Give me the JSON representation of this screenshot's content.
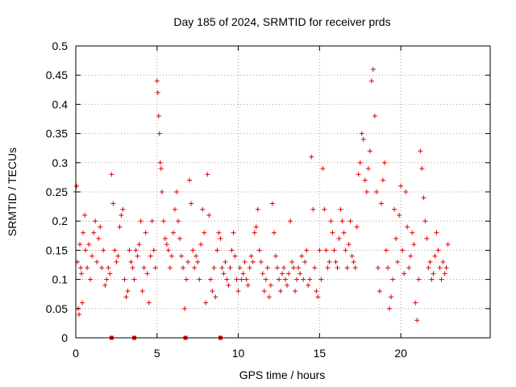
{
  "chart_data": {
    "type": "scatter",
    "title": "Day 185 of 2024, SRMTID for receiver prds",
    "xlabel": "GPS time / hours",
    "ylabel": "SRMTID / TECUs",
    "xlim": [
      0,
      25.5
    ],
    "ylim": [
      0,
      0.5
    ],
    "xticks": [
      0,
      5,
      10,
      15,
      20
    ],
    "xtick_labels": [
      "0",
      "5",
      "10",
      "15",
      "20"
    ],
    "yticks": [
      0,
      0.05,
      0.1,
      0.15,
      0.2,
      0.25,
      0.3,
      0.35,
      0.4,
      0.45,
      0.5
    ],
    "ytick_labels": [
      "0",
      "0.05",
      "0.1",
      "0.15",
      "0.2",
      "0.25",
      "0.3",
      "0.35",
      "0.4",
      "0.45",
      "0.5"
    ],
    "grid": true,
    "marker": "+",
    "color": "#e00000",
    "series": [
      {
        "name": "SRMTID",
        "x": [
          0.0,
          0.05,
          0.1,
          0.15,
          0.2,
          0.25,
          0.3,
          0.35,
          0.4,
          0.45,
          0.55,
          0.6,
          0.7,
          0.8,
          0.9,
          1.0,
          1.1,
          1.2,
          1.3,
          1.4,
          1.5,
          1.6,
          1.7,
          1.8,
          1.9,
          2.0,
          2.1,
          2.2,
          2.3,
          2.4,
          2.5,
          2.6,
          2.7,
          2.8,
          2.9,
          3.0,
          3.1,
          3.2,
          3.3,
          3.4,
          3.5,
          3.6,
          3.7,
          3.8,
          3.9,
          4.0,
          4.1,
          4.2,
          4.3,
          4.4,
          4.5,
          4.6,
          4.7,
          4.8,
          4.9,
          5.0,
          5.05,
          5.1,
          5.15,
          5.2,
          5.25,
          5.3,
          5.4,
          5.5,
          5.6,
          5.7,
          5.8,
          5.9,
          6.0,
          6.1,
          6.2,
          6.3,
          6.4,
          6.5,
          6.6,
          6.7,
          6.8,
          6.9,
          7.0,
          7.1,
          7.2,
          7.3,
          7.4,
          7.5,
          7.6,
          7.7,
          7.8,
          7.9,
          8.0,
          8.1,
          8.2,
          8.3,
          8.4,
          8.5,
          8.6,
          8.7,
          8.8,
          8.9,
          9.0,
          9.1,
          9.2,
          9.3,
          9.4,
          9.5,
          9.6,
          9.7,
          9.8,
          9.9,
          10.0,
          10.1,
          10.2,
          10.3,
          10.4,
          10.5,
          10.6,
          10.7,
          10.8,
          10.9,
          11.0,
          11.1,
          11.2,
          11.3,
          11.4,
          11.5,
          11.6,
          11.7,
          11.8,
          11.9,
          12.0,
          12.1,
          12.2,
          12.3,
          12.4,
          12.5,
          12.6,
          12.7,
          12.8,
          12.9,
          13.0,
          13.1,
          13.2,
          13.3,
          13.4,
          13.5,
          13.6,
          13.7,
          13.8,
          13.9,
          14.0,
          14.1,
          14.2,
          14.3,
          14.4,
          14.5,
          14.6,
          14.7,
          14.8,
          14.9,
          15.0,
          15.1,
          15.2,
          15.3,
          15.4,
          15.5,
          15.6,
          15.7,
          15.8,
          15.9,
          16.0,
          16.1,
          16.2,
          16.3,
          16.4,
          16.5,
          16.6,
          16.7,
          16.8,
          16.9,
          17.0,
          17.1,
          17.2,
          17.3,
          17.4,
          17.5,
          17.6,
          17.7,
          17.8,
          17.9,
          18.0,
          18.1,
          18.2,
          18.3,
          18.4,
          18.5,
          18.6,
          18.7,
          18.8,
          18.9,
          19.0,
          19.1,
          19.2,
          19.3,
          19.4,
          19.5,
          19.6,
          19.7,
          19.8,
          19.9,
          20.0,
          20.1,
          20.2,
          20.3,
          20.4,
          20.5,
          20.6,
          20.7,
          20.8,
          20.9,
          21.0,
          21.1,
          21.2,
          21.3,
          21.4,
          21.5,
          21.6,
          21.7,
          21.8,
          21.9,
          22.0,
          22.1,
          22.2,
          22.3,
          22.4,
          22.5,
          22.6,
          22.7,
          22.8,
          22.9
        ],
        "y": [
          0.25,
          0.26,
          0.13,
          0.05,
          0.04,
          0.16,
          0.12,
          0.11,
          0.06,
          0.18,
          0.21,
          0.15,
          0.12,
          0.16,
          0.1,
          0.14,
          0.18,
          0.2,
          0.13,
          0.17,
          0.19,
          0.12,
          0.15,
          0.09,
          0.1,
          0.12,
          0.11,
          0.28,
          0.23,
          0.15,
          0.13,
          0.14,
          0.19,
          0.21,
          0.22,
          0.1,
          0.07,
          0.08,
          0.15,
          0.13,
          0.12,
          0.1,
          0.15,
          0.14,
          0.16,
          0.2,
          0.08,
          0.12,
          0.18,
          0.11,
          0.06,
          0.14,
          0.2,
          0.15,
          0.12,
          0.44,
          0.42,
          0.38,
          0.35,
          0.3,
          0.29,
          0.25,
          0.2,
          0.17,
          0.16,
          0.15,
          0.12,
          0.14,
          0.18,
          0.22,
          0.25,
          0.2,
          0.17,
          0.14,
          0.12,
          0.05,
          0.1,
          0.13,
          0.27,
          0.23,
          0.15,
          0.12,
          0.14,
          0.13,
          0.1,
          0.16,
          0.22,
          0.18,
          0.06,
          0.28,
          0.21,
          0.1,
          0.08,
          0.12,
          0.07,
          0.15,
          0.18,
          0.17,
          0.12,
          0.11,
          0.13,
          0.1,
          0.09,
          0.12,
          0.15,
          0.18,
          0.14,
          0.1,
          0.08,
          0.12,
          0.1,
          0.11,
          0.13,
          0.1,
          0.09,
          0.12,
          0.14,
          0.13,
          0.18,
          0.19,
          0.22,
          0.15,
          0.13,
          0.11,
          0.08,
          0.1,
          0.12,
          0.07,
          0.09,
          0.23,
          0.18,
          0.14,
          0.12,
          0.1,
          0.08,
          0.11,
          0.12,
          0.1,
          0.09,
          0.11,
          0.2,
          0.13,
          0.12,
          0.08,
          0.1,
          0.12,
          0.11,
          0.14,
          0.1,
          0.13,
          0.15,
          0.09,
          0.1,
          0.31,
          0.22,
          0.12,
          0.08,
          0.07,
          0.15,
          0.1,
          0.29,
          0.22,
          0.15,
          0.12,
          0.13,
          0.2,
          0.18,
          0.15,
          0.13,
          0.12,
          0.17,
          0.22,
          0.2,
          0.18,
          0.15,
          0.12,
          0.16,
          0.2,
          0.14,
          0.13,
          0.12,
          0.19,
          0.28,
          0.3,
          0.35,
          0.34,
          0.27,
          0.25,
          0.29,
          0.32,
          0.44,
          0.46,
          0.38,
          0.25,
          0.12,
          0.08,
          0.23,
          0.27,
          0.3,
          0.15,
          0.12,
          0.05,
          0.07,
          0.1,
          0.22,
          0.17,
          0.13,
          0.21,
          0.26,
          0.15,
          0.11,
          0.25,
          0.19,
          0.12,
          0.14,
          0.18,
          0.16,
          0.06,
          0.03,
          0.1,
          0.32,
          0.29,
          0.24,
          0.2,
          0.17,
          0.12,
          0.13,
          0.1,
          0.11,
          0.14,
          0.18,
          0.15,
          0.12,
          0.1,
          0.13,
          0.11,
          0.12,
          0.16
        ]
      }
    ],
    "zero_points": [
      2.2,
      3.6,
      6.75,
      8.9
    ]
  }
}
